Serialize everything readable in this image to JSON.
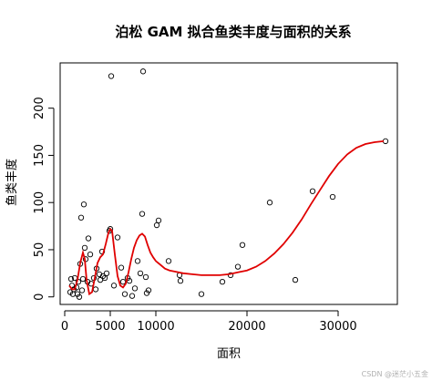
{
  "watermark": "CSDN @迷茫小五金",
  "chart_data": {
    "type": "scatter",
    "title": "泊松 GAM 拟合鱼类丰度与面积的关系",
    "xlabel": "面积",
    "ylabel": "鱼类丰度",
    "xlim": [
      -500,
      36500
    ],
    "ylim": [
      -8,
      248
    ],
    "xticks": [
      0,
      5000,
      10000,
      20000,
      30000
    ],
    "xtick_labels": [
      "0",
      "5000",
      "10000",
      "20000",
      "30000"
    ],
    "yticks": [
      0,
      50,
      100,
      150,
      200
    ],
    "ytick_labels": [
      "0",
      "50",
      "100",
      "150",
      "200"
    ],
    "grid": false,
    "points": [
      [
        600,
        5
      ],
      [
        700,
        19
      ],
      [
        800,
        12
      ],
      [
        900,
        3
      ],
      [
        1000,
        8
      ],
      [
        1100,
        20
      ],
      [
        1300,
        10
      ],
      [
        1400,
        3
      ],
      [
        1500,
        16
      ],
      [
        1600,
        0
      ],
      [
        1700,
        35
      ],
      [
        1800,
        84
      ],
      [
        1900,
        7
      ],
      [
        2000,
        19
      ],
      [
        2100,
        98
      ],
      [
        2200,
        52
      ],
      [
        2300,
        40
      ],
      [
        2500,
        16
      ],
      [
        2600,
        62
      ],
      [
        2800,
        45
      ],
      [
        2900,
        14
      ],
      [
        3200,
        20
      ],
      [
        3400,
        8
      ],
      [
        3500,
        30
      ],
      [
        3800,
        24
      ],
      [
        3900,
        18
      ],
      [
        4100,
        48
      ],
      [
        4200,
        22
      ],
      [
        4400,
        20
      ],
      [
        4600,
        25
      ],
      [
        4900,
        70
      ],
      [
        5000,
        72
      ],
      [
        5100,
        234
      ],
      [
        5400,
        12
      ],
      [
        5800,
        63
      ],
      [
        6200,
        31
      ],
      [
        6400,
        16
      ],
      [
        6600,
        3
      ],
      [
        6900,
        20
      ],
      [
        7100,
        17
      ],
      [
        7400,
        1
      ],
      [
        7700,
        9
      ],
      [
        8000,
        38
      ],
      [
        8300,
        25
      ],
      [
        8500,
        88
      ],
      [
        8600,
        239
      ],
      [
        8900,
        21
      ],
      [
        9000,
        4
      ],
      [
        9200,
        7
      ],
      [
        10100,
        76
      ],
      [
        10300,
        81
      ],
      [
        11400,
        38
      ],
      [
        12600,
        23
      ],
      [
        12700,
        17
      ],
      [
        15000,
        3
      ],
      [
        17300,
        16
      ],
      [
        18200,
        23
      ],
      [
        19000,
        32
      ],
      [
        19500,
        55
      ],
      [
        22500,
        100
      ],
      [
        25300,
        18
      ],
      [
        27200,
        112
      ],
      [
        29400,
        106
      ],
      [
        35200,
        165
      ]
    ],
    "fit_line": {
      "color": "#e00000",
      "x": [
        500,
        800,
        1100,
        1400,
        1700,
        2000,
        2200,
        2400,
        2700,
        3000,
        3300,
        3600,
        3900,
        4200,
        4500,
        4800,
        5000,
        5200,
        5500,
        5800,
        6100,
        6400,
        6700,
        7000,
        7300,
        7600,
        7900,
        8200,
        8500,
        8800,
        9100,
        9400,
        9700,
        10000,
        10500,
        11000,
        11500,
        12000,
        13000,
        14000,
        15000,
        16000,
        17000,
        18000,
        19000,
        20000,
        21000,
        22000,
        23000,
        24000,
        25000,
        26000,
        27000,
        28000,
        29000,
        30000,
        31000,
        32000,
        33000,
        34000,
        35000
      ],
      "y": [
        12,
        8,
        8,
        18,
        36,
        47,
        40,
        18,
        3,
        5,
        20,
        36,
        42,
        45,
        56,
        68,
        72,
        70,
        45,
        22,
        12,
        10,
        14,
        26,
        40,
        52,
        60,
        65,
        67,
        64,
        55,
        47,
        42,
        38,
        34,
        30,
        28,
        27,
        25,
        24,
        23,
        23,
        23,
        24,
        26,
        28,
        32,
        38,
        46,
        56,
        68,
        82,
        98,
        113,
        128,
        141,
        151,
        158,
        162,
        164,
        165
      ]
    }
  }
}
